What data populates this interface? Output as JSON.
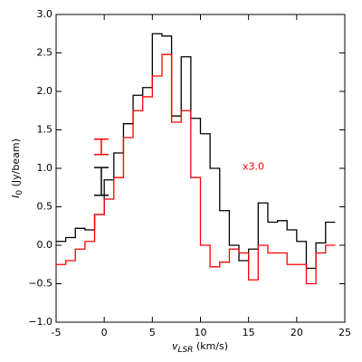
{
  "chart_data": {
    "type": "step",
    "xlabel": {
      "symbol": "v",
      "subscript": "LSR",
      "unit": "(km/s)"
    },
    "ylabel": {
      "symbol": "I",
      "subscript": "0",
      "unit": "(Jy/beam)"
    },
    "x": [
      -5,
      -4,
      -3,
      -2,
      -1,
      0,
      1,
      2,
      3,
      4,
      5,
      6,
      7,
      8,
      9,
      10,
      11,
      12,
      13,
      14,
      15,
      16,
      17,
      18,
      19,
      20,
      21,
      22,
      23
    ],
    "step_width": 1,
    "series": [
      {
        "color": "#000000",
        "values": [
          0.05,
          0.1,
          0.22,
          0.2,
          0.4,
          0.85,
          1.2,
          1.58,
          1.95,
          2.05,
          2.75,
          2.72,
          1.68,
          2.45,
          1.65,
          1.45,
          1.0,
          0.45,
          0.0,
          -0.2,
          -0.05,
          0.55,
          0.3,
          0.32,
          0.2,
          0.05,
          -0.3,
          0.03,
          0.3
        ]
      },
      {
        "color": "#ff0000",
        "values": [
          -0.25,
          -0.2,
          -0.05,
          0.05,
          0.4,
          0.6,
          0.88,
          1.4,
          1.75,
          1.93,
          2.2,
          2.48,
          1.6,
          1.75,
          0.88,
          0.0,
          -0.28,
          -0.22,
          -0.05,
          -0.1,
          -0.45,
          0.0,
          -0.1,
          -0.1,
          -0.25,
          -0.25,
          -0.5,
          -0.1,
          0.0
        ]
      }
    ],
    "errorbars": [
      {
        "color": "#000000",
        "x": -0.3,
        "value": 0.83,
        "error": 0.18
      },
      {
        "color": "#ff0000",
        "x": -0.3,
        "value": 1.28,
        "error": 0.1
      }
    ],
    "annotation": {
      "text": "x3.0",
      "x": 15.5,
      "y": 1.02,
      "color": "#ff0000"
    },
    "xlim": [
      -5,
      25
    ],
    "xticks": [
      -5,
      0,
      5,
      10,
      15,
      20,
      25
    ],
    "ylim": [
      -1.0,
      3.0
    ],
    "yticks": [
      {
        "value": -1.0,
        "label": "−1.0"
      },
      {
        "value": -0.5,
        "label": "−0.5"
      },
      {
        "value": 0.0,
        "label": "0.0"
      },
      {
        "value": 0.5,
        "label": "0.5"
      },
      {
        "value": 1.0,
        "label": "1.0"
      },
      {
        "value": 1.5,
        "label": "1.5"
      },
      {
        "value": 2.0,
        "label": "2.0"
      },
      {
        "value": 2.5,
        "label": "2.5"
      },
      {
        "value": 3.0,
        "label": "3.0"
      }
    ]
  }
}
